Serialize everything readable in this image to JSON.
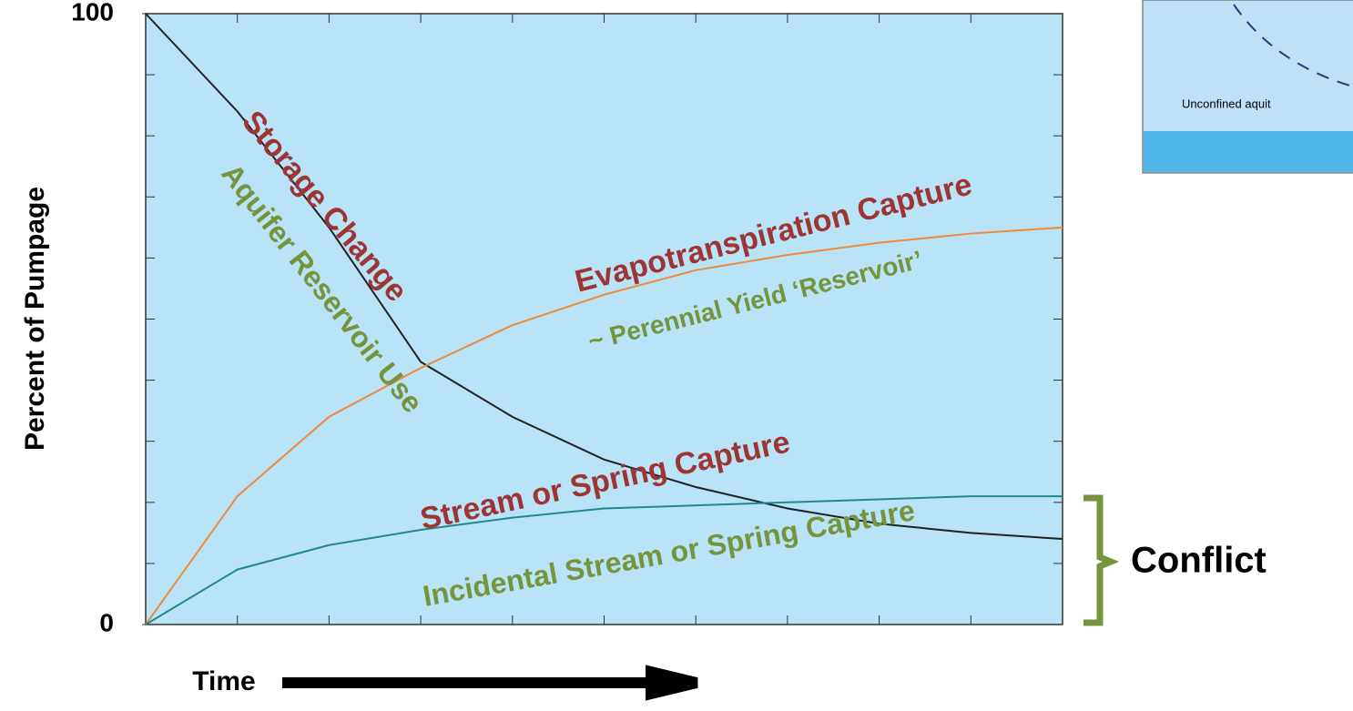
{
  "chart_data": {
    "type": "line",
    "y_label": "Percent of Pumpage",
    "x_label": "Time",
    "x": [
      0,
      1,
      2,
      3,
      4,
      5,
      6,
      7,
      8,
      9,
      10
    ],
    "xlim": [
      0,
      10
    ],
    "ylim": [
      0,
      100
    ],
    "yticks": [
      0,
      100
    ],
    "series": [
      {
        "color": "#222222",
        "values": [
          100,
          84,
          65,
          43,
          34,
          27,
          22.5,
          19,
          16.5,
          15,
          14
        ]
      },
      {
        "color": "#f08a3c",
        "values": [
          0,
          21,
          34,
          42,
          49,
          54,
          58,
          60.5,
          62.5,
          64,
          65
        ]
      },
      {
        "color": "#1f8a86",
        "values": [
          0,
          9,
          13,
          15.5,
          17.5,
          19,
          19.5,
          20,
          20.5,
          21,
          21
        ]
      }
    ],
    "annotations": [
      {
        "text": "Storage Change",
        "color": "#9e3434"
      },
      {
        "text": "Aquifer Reservoir Use",
        "color": "#77933c"
      },
      {
        "text": "Evapotranspiration Capture",
        "color": "#9e3434"
      },
      {
        "text": "~ Perennial Yield ‘Reservoir’",
        "color": "#77933c"
      },
      {
        "text": "Stream or Spring Capture",
        "color": "#9e3434"
      },
      {
        "text": "Incidental Stream or Spring Capture",
        "color": "#77933c"
      }
    ],
    "bracket_label": "Conflict"
  },
  "inset": {
    "label": "Unconfined aquit"
  }
}
